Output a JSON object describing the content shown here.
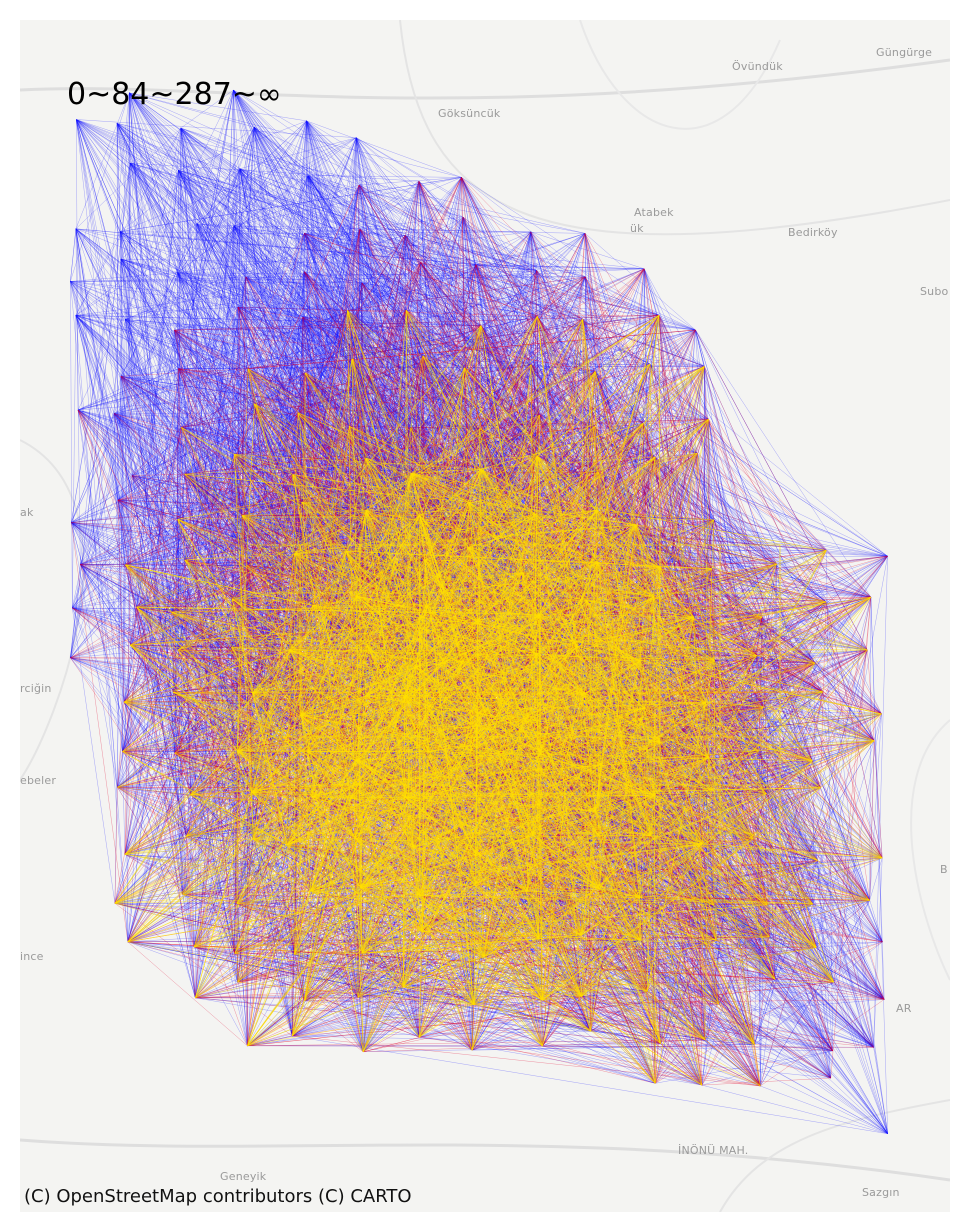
{
  "legend_title": "0~84~287~∞",
  "attribution": "(C) OpenStreetMap contributors (C) CARTO",
  "colors": {
    "background": "#f4f4f2",
    "low_band": "#1010ff",
    "mid_band": "#e0002a",
    "high_band": "#ffe000",
    "road": "#dcdcdc",
    "label": "#9a9a9a"
  },
  "place_labels": [
    {
      "id": "ovunduk",
      "text": "Övündük"
    },
    {
      "id": "gungurge",
      "text": "Güngürge"
    },
    {
      "id": "goksuncuk",
      "text": "Göksüncük"
    },
    {
      "id": "atabek",
      "text": "Atabek"
    },
    {
      "id": "atabek-suffix",
      "text": "ük"
    },
    {
      "id": "bedirkoy",
      "text": "Bedirköy"
    },
    {
      "id": "subo",
      "text": "Subo"
    },
    {
      "id": "ak",
      "text": "ak"
    },
    {
      "id": "rciğin",
      "text": "rciğin"
    },
    {
      "id": "ebeler",
      "text": "ebeler"
    },
    {
      "id": "b",
      "text": "B"
    },
    {
      "id": "ince",
      "text": "ince"
    },
    {
      "id": "ar",
      "text": "AR"
    },
    {
      "id": "inonu",
      "text": "İNÖNÜ MAH."
    },
    {
      "id": "geneyik",
      "text": "Geneyik"
    },
    {
      "id": "sazgin",
      "text": "Sazgın"
    }
  ]
}
